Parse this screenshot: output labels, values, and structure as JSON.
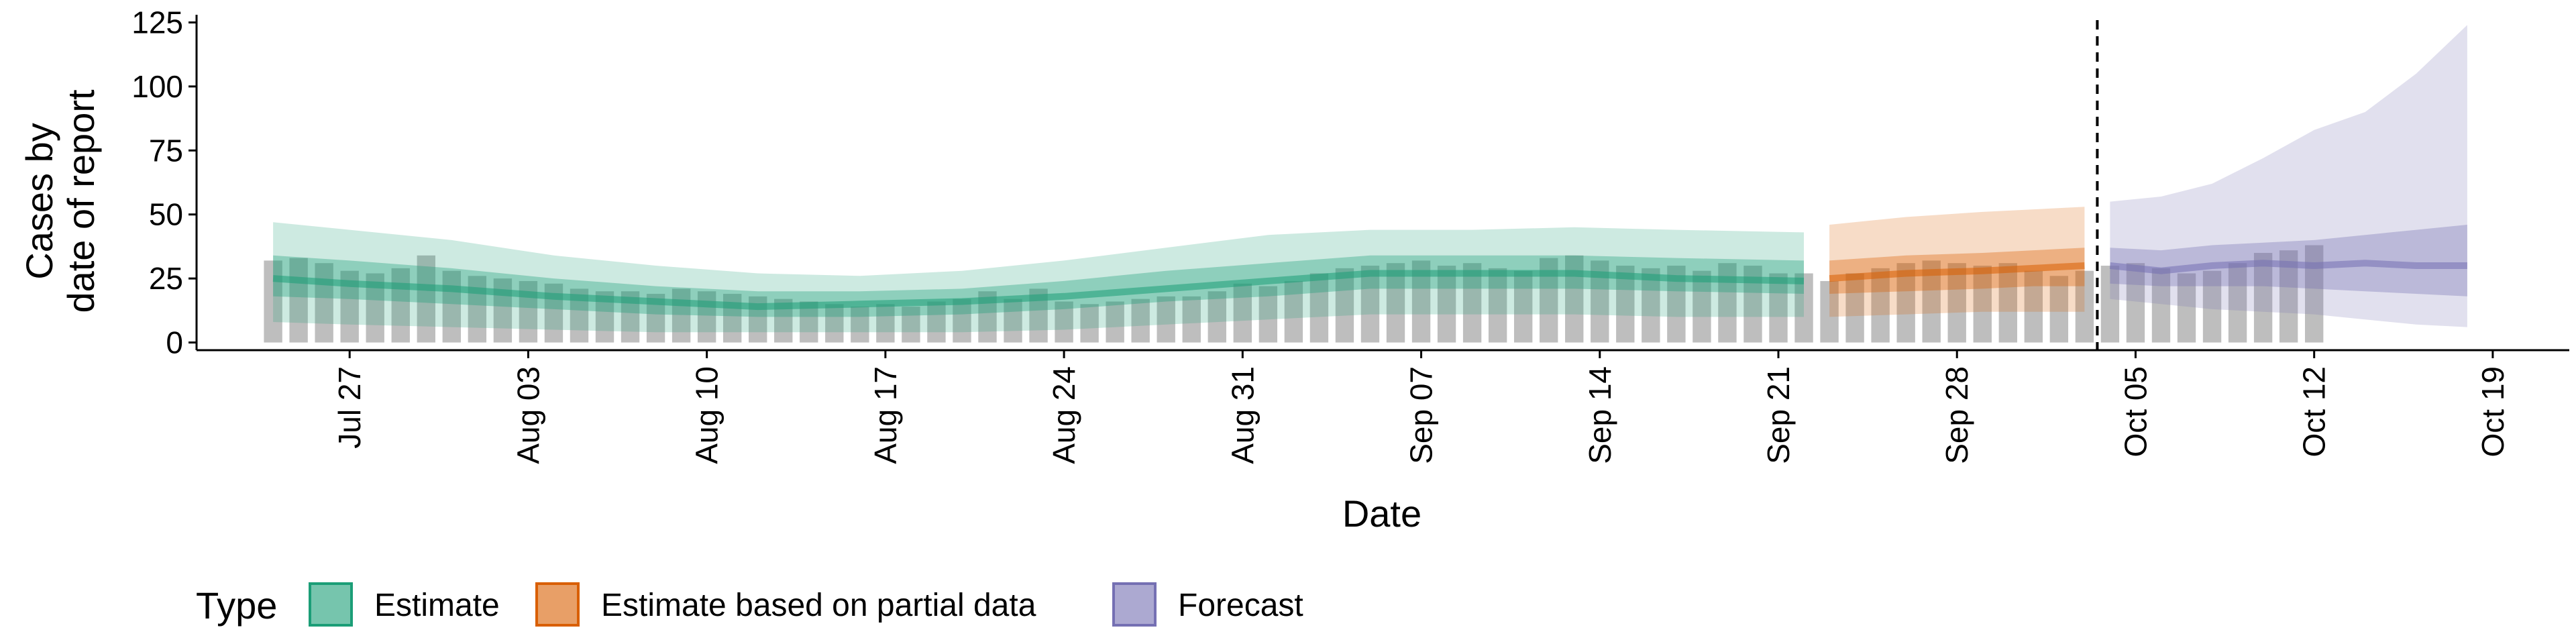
{
  "chart_data": {
    "type": "area",
    "title": "",
    "xlabel": "Date",
    "ylabel": [
      "Cases by",
      "date of report"
    ],
    "x_ticks": [
      "Jul 27",
      "Aug 03",
      "Aug 10",
      "Aug 17",
      "Aug 24",
      "Aug 31",
      "Sep 07",
      "Sep 14",
      "Sep 21",
      "Sep 28",
      "Oct 05",
      "Oct 12",
      "Oct 19"
    ],
    "y_ticks": [
      0,
      25,
      50,
      75,
      100,
      125
    ],
    "xlim": [
      "2020-07-21",
      "2020-10-22"
    ],
    "ylim": [
      -3,
      128
    ],
    "grid": false,
    "vline_date": "2020-10-03",
    "legend": {
      "title": "Type",
      "position": "bottom",
      "items": [
        {
          "label": "Estimate",
          "fill": "#1b9e77",
          "border": "#1b9e77"
        },
        {
          "label": "Estimate based on partial data",
          "fill": "#d95f02",
          "border": "#d95f02"
        },
        {
          "label": "Forecast",
          "fill": "#7570b3",
          "border": "#7570b3"
        }
      ]
    },
    "colors": {
      "Estimate": "#1b9e77",
      "Estimate based on partial data": "#d95f02",
      "Forecast": "#7570b3",
      "bars": "#a8a8a8"
    },
    "bars": {
      "start_date": "2020-07-24",
      "values": [
        32,
        33,
        31,
        28,
        27,
        29,
        34,
        28,
        26,
        25,
        24,
        23,
        21,
        20,
        20,
        19,
        21,
        20,
        19,
        18,
        17,
        16,
        15,
        14,
        15,
        14,
        16,
        17,
        20,
        17,
        21,
        16,
        15,
        16,
        17,
        18,
        18,
        20,
        23,
        22,
        24,
        27,
        29,
        30,
        31,
        32,
        30,
        31,
        29,
        28,
        33,
        34,
        32,
        30,
        29,
        30,
        28,
        31,
        30,
        27,
        27,
        24,
        27,
        29,
        31,
        32,
        31,
        30,
        31,
        28,
        26,
        28,
        30,
        31,
        29,
        27,
        28,
        31,
        35,
        36,
        38
      ]
    },
    "series": [
      {
        "name": "Estimate",
        "dates": [
          "2020-07-24",
          "2020-07-27",
          "2020-07-31",
          "2020-08-04",
          "2020-08-08",
          "2020-08-12",
          "2020-08-16",
          "2020-08-20",
          "2020-08-24",
          "2020-08-28",
          "2020-09-01",
          "2020-09-05",
          "2020-09-09",
          "2020-09-13",
          "2020-09-17",
          "2020-09-22"
        ],
        "outer_lower": [
          8,
          7,
          6,
          5,
          4,
          4,
          4,
          4,
          5,
          7,
          9,
          11,
          11,
          11,
          10,
          10
        ],
        "outer_upper": [
          47,
          44,
          40,
          34,
          30,
          27,
          26,
          28,
          32,
          37,
          42,
          44,
          44,
          45,
          44,
          43
        ],
        "inner_lower": [
          18,
          17,
          15,
          13,
          11,
          10,
          10,
          11,
          13,
          16,
          18,
          21,
          21,
          21,
          20,
          19
        ],
        "inner_upper": [
          34,
          32,
          29,
          25,
          22,
          20,
          20,
          21,
          24,
          28,
          31,
          34,
          34,
          34,
          33,
          32
        ],
        "median": [
          25,
          23,
          21,
          18,
          16,
          14,
          15,
          16,
          18,
          21,
          24,
          27,
          27,
          27,
          25,
          24
        ]
      },
      {
        "name": "Estimate based on partial data",
        "dates": [
          "2020-09-23",
          "2020-09-26",
          "2020-09-29",
          "2020-10-01",
          "2020-10-03"
        ],
        "outer_lower": [
          10,
          11,
          12,
          12,
          12
        ],
        "outer_upper": [
          46,
          49,
          51,
          52,
          53
        ],
        "inner_lower": [
          19,
          20,
          21,
          22,
          22
        ],
        "inner_upper": [
          32,
          34,
          35,
          36,
          37
        ],
        "median": [
          25,
          27,
          28,
          29,
          30
        ]
      },
      {
        "name": "Forecast",
        "dates": [
          "2020-10-04",
          "2020-10-06",
          "2020-10-08",
          "2020-10-10",
          "2020-10-12",
          "2020-10-14",
          "2020-10-16",
          "2020-10-18"
        ],
        "outer_lower": [
          17,
          15,
          13,
          12,
          11,
          9,
          7,
          6
        ],
        "outer_upper": [
          55,
          57,
          62,
          72,
          83,
          90,
          105,
          124
        ],
        "inner_lower": [
          23,
          22,
          22,
          22,
          21,
          20,
          19,
          18
        ],
        "inner_upper": [
          37,
          36,
          38,
          39,
          40,
          42,
          44,
          46
        ],
        "median": [
          30,
          28,
          30,
          31,
          30,
          31,
          30,
          30
        ]
      }
    ]
  }
}
